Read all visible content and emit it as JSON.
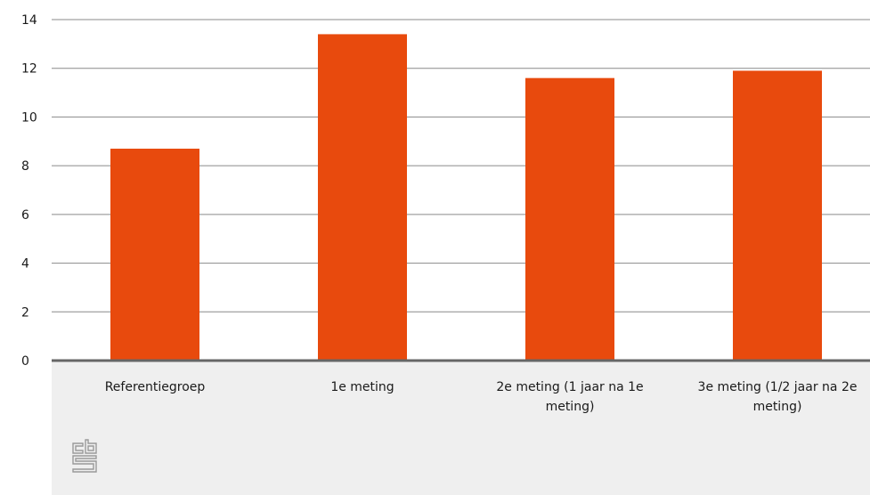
{
  "chart_data": {
    "type": "bar",
    "categories": [
      "Referentiegroep",
      "1e meting",
      "2e meting (1 jaar na 1e meting)",
      "3e meting (1/2 jaar na 2e meting)"
    ],
    "category_label_lines": [
      [
        "Referentiegroep"
      ],
      [
        "1e meting"
      ],
      [
        "2e meting (1 jaar na 1e",
        "meting)"
      ],
      [
        "3e meting (1/2 jaar na 2e",
        "meting)"
      ]
    ],
    "values": [
      8.7,
      13.4,
      11.6,
      11.9
    ],
    "title": "",
    "xlabel": "",
    "ylabel": "",
    "ylim": [
      0,
      14
    ],
    "yticks": [
      0,
      2,
      4,
      6,
      8,
      10,
      12,
      14
    ],
    "grid": true,
    "legend": "none"
  },
  "colors": {
    "bar": "#E84A0D",
    "grid": "#8a8a8a",
    "axis": "#666666",
    "category_band": "#EFEFEF",
    "text": "#1a1a1a",
    "logo": "#9a9a9a"
  },
  "logo": {
    "icon": "cbs-logo-icon"
  }
}
